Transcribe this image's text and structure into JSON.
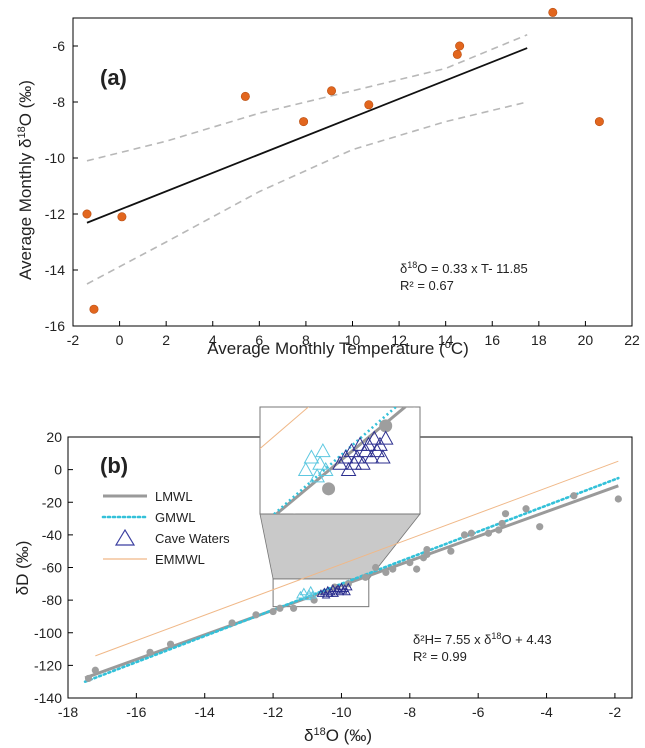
{
  "chart_data": [
    {
      "panel_label": "(a)",
      "type": "scatter",
      "xlabel_main": "Average Monthly Temperature (",
      "xlabel_sup": "o",
      "xlabel_end": "C)",
      "ylabel_main": "Average Monthly δ",
      "ylabel_sup": "18",
      "ylabel_end": "O (‰)",
      "xlim": [
        -2,
        22
      ],
      "ylim": [
        -16,
        -5
      ],
      "x_ticks": [
        -2,
        0,
        2,
        4,
        6,
        8,
        10,
        12,
        14,
        16,
        18,
        20,
        22
      ],
      "y_ticks": [
        -16,
        -14,
        -12,
        -10,
        -8,
        -6
      ],
      "points": [
        {
          "x": -1.4,
          "y": -12.0
        },
        {
          "x": -1.1,
          "y": -15.4
        },
        {
          "x": 0.1,
          "y": -12.1
        },
        {
          "x": 5.4,
          "y": -7.8
        },
        {
          "x": 7.9,
          "y": -8.7
        },
        {
          "x": 9.1,
          "y": -7.6
        },
        {
          "x": 10.7,
          "y": -8.1
        },
        {
          "x": 14.5,
          "y": -6.3
        },
        {
          "x": 14.6,
          "y": -6.0
        },
        {
          "x": 18.6,
          "y": -4.8
        },
        {
          "x": 20.6,
          "y": -8.7
        }
      ],
      "regression": {
        "x_start": -1.4,
        "x_end": 17.5,
        "slope": 0.33,
        "intercept": -11.85
      },
      "confidence_upper": [
        [
          -1.4,
          -10.1
        ],
        [
          2,
          -9.4
        ],
        [
          6,
          -8.4
        ],
        [
          10,
          -7.6
        ],
        [
          14,
          -6.8
        ],
        [
          17.5,
          -5.6
        ]
      ],
      "confidence_lower": [
        [
          -1.4,
          -14.5
        ],
        [
          2,
          -13.0
        ],
        [
          6,
          -11.2
        ],
        [
          10,
          -9.7
        ],
        [
          14,
          -8.7
        ],
        [
          17.5,
          -8.0
        ]
      ],
      "equation_line1": "δ18O = 0.33 x T- 11.85",
      "equation_line1_parts": [
        "δ",
        "18",
        "O = 0.33 x T- 11.85"
      ],
      "equation_line2": "R² = 0.67"
    },
    {
      "panel_label": "(b)",
      "type": "scatter",
      "xlabel_main": "δ",
      "xlabel_sup": "18",
      "xlabel_end": "O (‰)",
      "ylabel": "δD (‰)",
      "xlim": [
        -18,
        -1.5
      ],
      "ylim": [
        -140,
        20
      ],
      "x_ticks": [
        -18,
        -16,
        -14,
        -12,
        -10,
        -8,
        -6,
        -4,
        -2
      ],
      "y_ticks": [
        -140,
        -120,
        -100,
        -80,
        -60,
        -40,
        -20,
        0,
        20
      ],
      "legend": [
        {
          "label": "LMWL",
          "color": "#9a9a9a",
          "style": "solid"
        },
        {
          "label": "GMWL",
          "color": "#33c1d9",
          "style": "dotted"
        },
        {
          "label": "Cave Waters",
          "color": "#3b3fa0",
          "style": "triangle"
        },
        {
          "label": "EMMWL",
          "color": "#f0b888",
          "style": "thin"
        }
      ],
      "lmwl": {
        "slope": 7.55,
        "intercept": 4.43
      },
      "gmwl": {
        "slope": 8.0,
        "intercept": 10.0
      },
      "emmwl": {
        "slope": 7.8,
        "intercept": 20.0
      },
      "precip_points": [
        {
          "x": -17.2,
          "y": -123
        },
        {
          "x": -15.6,
          "y": -112
        },
        {
          "x": -15.0,
          "y": -107
        },
        {
          "x": -13.2,
          "y": -94
        },
        {
          "x": -12.5,
          "y": -89
        },
        {
          "x": -12.0,
          "y": -87
        },
        {
          "x": -11.8,
          "y": -85
        },
        {
          "x": -11.4,
          "y": -85
        },
        {
          "x": -10.8,
          "y": -80
        },
        {
          "x": -10.2,
          "y": -72
        },
        {
          "x": -9.8,
          "y": -70
        },
        {
          "x": -9.3,
          "y": -66
        },
        {
          "x": -9.0,
          "y": -60
        },
        {
          "x": -8.7,
          "y": -63
        },
        {
          "x": -8.5,
          "y": -61
        },
        {
          "x": -8.0,
          "y": -57
        },
        {
          "x": -7.8,
          "y": -61
        },
        {
          "x": -7.6,
          "y": -54
        },
        {
          "x": -7.5,
          "y": -52
        },
        {
          "x": -7.5,
          "y": -49
        },
        {
          "x": -6.8,
          "y": -50
        },
        {
          "x": -6.4,
          "y": -40
        },
        {
          "x": -6.2,
          "y": -39
        },
        {
          "x": -5.7,
          "y": -39
        },
        {
          "x": -5.4,
          "y": -37
        },
        {
          "x": -5.3,
          "y": -33
        },
        {
          "x": -5.2,
          "y": -27
        },
        {
          "x": -4.6,
          "y": -24
        },
        {
          "x": -4.2,
          "y": -35
        },
        {
          "x": -3.2,
          "y": -16
        },
        {
          "x": -1.9,
          "y": -18
        },
        {
          "x": -17.4,
          "y": -128
        }
      ],
      "cave_light": [
        {
          "x": -11.2,
          "y": -77
        },
        {
          "x": -11.1,
          "y": -75
        },
        {
          "x": -11.0,
          "y": -78
        },
        {
          "x": -10.95,
          "y": -76
        },
        {
          "x": -10.9,
          "y": -74
        },
        {
          "x": -10.85,
          "y": -77
        }
      ],
      "cave_dark": [
        {
          "x": -10.6,
          "y": -76
        },
        {
          "x": -10.5,
          "y": -75
        },
        {
          "x": -10.45,
          "y": -77
        },
        {
          "x": -10.4,
          "y": -74
        },
        {
          "x": -10.35,
          "y": -76
        },
        {
          "x": -10.3,
          "y": -75
        },
        {
          "x": -10.25,
          "y": -73
        },
        {
          "x": -10.2,
          "y": -76
        },
        {
          "x": -10.15,
          "y": -74
        },
        {
          "x": -10.1,
          "y": -73
        },
        {
          "x": -10.05,
          "y": -75
        },
        {
          "x": -10.0,
          "y": -72
        },
        {
          "x": -9.95,
          "y": -74
        },
        {
          "x": -9.9,
          "y": -73
        },
        {
          "x": -9.85,
          "y": -75
        },
        {
          "x": -9.8,
          "y": -72
        }
      ],
      "inset_window": {
        "x": [
          -12.0,
          -9.2
        ],
        "y": [
          -84,
          -67
        ]
      },
      "inset_points": [
        {
          "x": -11.4,
          "y": -85
        },
        {
          "x": -10.8,
          "y": -80
        },
        {
          "x": -9.3,
          "y": -66
        },
        {
          "x": -9.8,
          "y": -70
        }
      ],
      "equation_line1": "δ²H= 7.55 x δ18O + 4.43",
      "equation_line1_parts": [
        "δ²H= 7.55 x δ",
        "18",
        "O + 4.43"
      ],
      "equation_line2": "R² = 0.99"
    }
  ]
}
